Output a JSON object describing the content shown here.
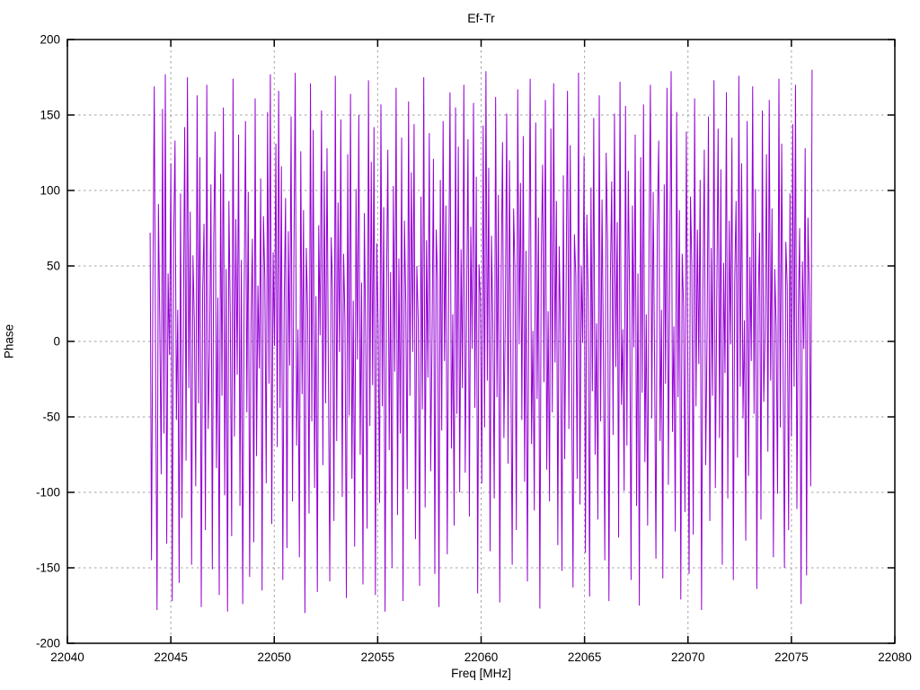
{
  "window": {
    "background": "#ffffff"
  },
  "chart": {
    "title": "Ef-Tr",
    "xlabel": "Freq [MHz]",
    "ylabel": "Phase",
    "colors": {
      "line": "#9400d3",
      "grid": "#a0a0a0",
      "border": "#000000",
      "text": "#000000"
    }
  },
  "chart_data": {
    "type": "line",
    "title": "Ef-Tr",
    "xlabel": "Freq [MHz]",
    "ylabel": "Phase",
    "xlim": [
      22040,
      22080
    ],
    "ylim": [
      -200,
      200
    ],
    "xticks": [
      22040,
      22045,
      22050,
      22055,
      22060,
      22065,
      22070,
      22075,
      22080
    ],
    "yticks": [
      -200,
      -150,
      -100,
      -50,
      0,
      50,
      100,
      150,
      200
    ],
    "grid": true,
    "legend_position": "none",
    "series": [
      {
        "name": "Ef-Tr phase",
        "color": "#9400d3",
        "x_start": 22044,
        "x_end": 22076,
        "n_points": 480,
        "values": [
          72,
          -145,
          38,
          169,
          -23,
          -178,
          91,
          12,
          -88,
          154,
          -61,
          177,
          -134,
          45,
          -9,
          118,
          -172,
          64,
          133,
          -52,
          21,
          -160,
          98,
          -117,
          6,
          142,
          -79,
          175,
          -31,
          86,
          -148,
          57,
          14,
          -96,
          163,
          -41,
          122,
          -176,
          33,
          78,
          -125,
          170,
          -58,
          -7,
          104,
          -151,
          66,
          139,
          -84,
          29,
          -168,
          111,
          -36,
          155,
          -102,
          48,
          -179,
          93,
          17,
          -129,
          174,
          -63,
          81,
          -22,
          137,
          -109,
          54,
          -174,
          26,
          146,
          -47,
          99,
          -156,
          11,
          68,
          -133,
          161,
          -76,
          37,
          -18,
          108,
          -165,
          83,
          41,
          -94,
          152,
          -28,
          177,
          -121,
          59,
          -3,
          131,
          -70,
          166,
          -44,
          116,
          -158,
          24,
          95,
          -137,
          73,
          -16,
          149,
          -106,
          51,
          178,
          -69,
          8,
          -143,
          126,
          -35,
          87,
          -180,
          62,
          19,
          -114,
          171,
          -53,
          140,
          -97,
          30,
          -166,
          77,
          4,
          153,
          -82,
          113,
          -41,
          128,
          -23,
          -159,
          69,
          35,
          -119,
          176,
          -66,
          92,
          -7,
          147,
          -103,
          58,
          13,
          -170,
          124,
          -49,
          164,
          -91,
          27,
          -136,
          101,
          -12,
          150,
          -75,
          39,
          -161,
          85,
          2,
          -124,
          173,
          -56,
          119,
          -29,
          142,
          -168,
          65,
          10,
          -107,
          157,
          -43,
          89,
          -179,
          32,
          127,
          -72,
          46,
          -150,
          103,
          -20,
          168,
          -115,
          55,
          -61,
          135,
          -172,
          80,
          25,
          -98,
          159,
          -36,
          112,
          -7,
          144,
          -131,
          50,
          15,
          -162,
          96,
          -45,
          175,
          -110,
          67,
          -24,
          138,
          -86,
          3,
          121,
          -154,
          74,
          40,
          -176,
          107,
          -59,
          146,
          -13,
          90,
          -141,
          34,
          165,
          -71,
          18,
          -122,
          155,
          -48,
          129,
          -100,
          61,
          -31,
          170,
          -87,
          22,
          134,
          -116,
          76,
          -5,
          158,
          -44,
          109,
          -167,
          51,
          28,
          -94,
          143,
          -57,
          179,
          -26,
          115,
          -139,
          70,
          9,
          -104,
          162,
          -37,
          97,
          -173,
          42,
          132,
          -64,
          16,
          151,
          -81,
          120,
          -11,
          -148,
          88,
          47,
          -125,
          167,
          -2,
          105,
          -52,
          136,
          -93,
          60,
          -159,
          31,
          174,
          -68,
          7,
          -112,
          145,
          -38,
          82,
          -177,
          54,
          117,
          -27,
          160,
          -85,
          20,
          -106,
          141,
          -47,
          171,
          -14,
          93,
          -135,
          63,
          5,
          -152,
          110,
          -78,
          36,
          166,
          -58,
          130,
          -24,
          -163,
          71,
          44,
          -91,
          178,
          -108,
          50,
          -1,
          123,
          -140,
          84,
          29,
          -169,
          102,
          -33,
          148,
          -75,
          12,
          -118,
          163,
          -53,
          94,
          -8,
          -145,
          125,
          66,
          -172,
          39,
          106,
          -62,
          151,
          -17,
          79,
          -130,
          172,
          -42,
          8,
          -99,
          156,
          -69,
          113,
          26,
          -158,
          90,
          -4,
          137,
          -109,
          45,
          -175,
          122,
          -34,
          157,
          -80,
          18,
          -122,
          65,
          170,
          -51,
          99,
          -11,
          -144,
          76,
          133,
          -66,
          21,
          -157,
          104,
          -28,
          168,
          -95,
          43,
          179,
          -60,
          10,
          -126,
          152,
          -37,
          87,
          -171,
          58,
          23,
          -113,
          139,
          -6,
          -154,
          96,
          49,
          -128,
          161,
          -43,
          74,
          -15,
          107,
          -178,
          35,
          127,
          -82,
          3,
          149,
          -119,
          62,
          -36,
          173,
          -97,
          26,
          141,
          -64,
          114,
          -148,
          52,
          -21,
          165,
          -104,
          80,
          -2,
          135,
          -158,
          41,
          93,
          -77,
          176,
          -30,
          118,
          -51,
          14,
          -132,
          146,
          -89,
          56,
          -13,
          169,
          -48,
          101,
          -164,
          27,
          72,
          -118,
          153,
          -40,
          5,
          124,
          -73,
          160,
          -26,
          88,
          -143,
          48,
          9,
          -101,
          174,
          -57,
          131,
          -16,
          -150,
          66,
          37,
          -125,
          98,
          -63,
          144,
          -30,
          170,
          -111,
          19,
          75,
          -174,
          53,
          -5,
          128,
          -155,
          82,
          34,
          -96,
          180
        ]
      }
    ]
  }
}
